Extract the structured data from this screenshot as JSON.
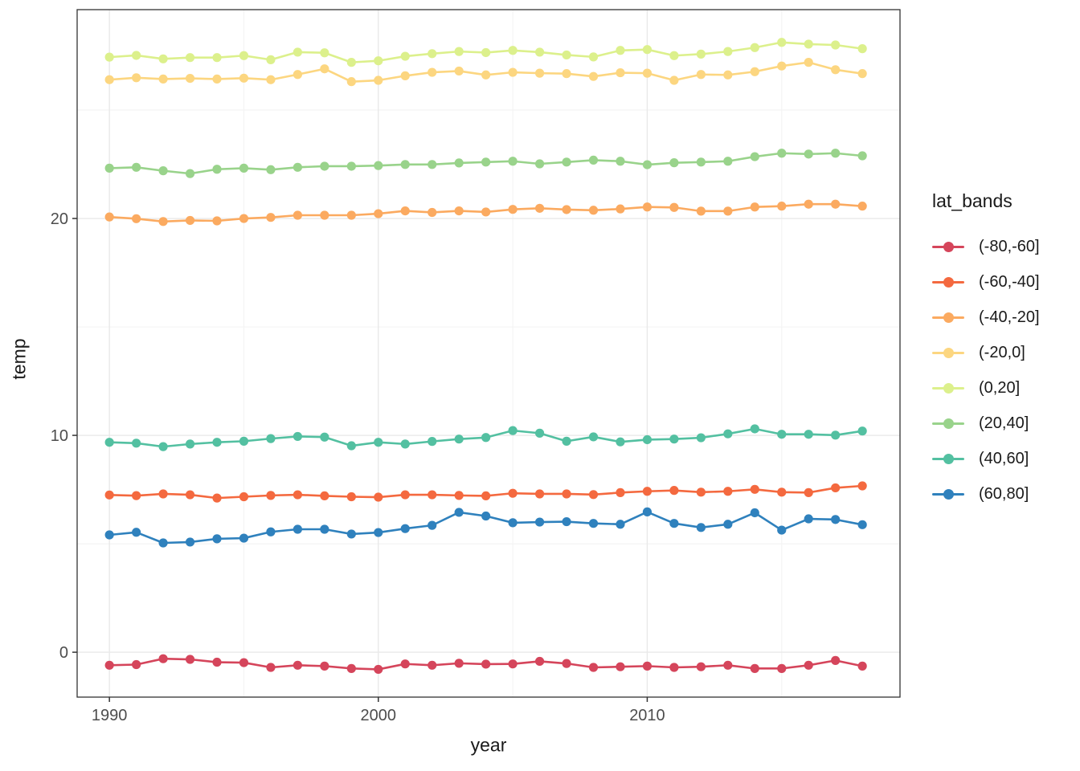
{
  "axes": {
    "x_label": "year",
    "y_label": "temp"
  },
  "legend": {
    "title": "lat_bands"
  },
  "chart_data": {
    "type": "line",
    "title": "",
    "xlabel": "year",
    "ylabel": "temp",
    "legend_title": "lat_bands",
    "legend_position": "right",
    "grid": true,
    "xlim": [
      1988.8,
      2019.4
    ],
    "ylim": [
      -2.07,
      29.63
    ],
    "x_ticks": [
      1990,
      2000,
      2010
    ],
    "x_minor_ticks": [
      1995,
      2005,
      2015
    ],
    "y_ticks": [
      0,
      10,
      20
    ],
    "y_minor_ticks": [
      5,
      15,
      25
    ],
    "x": [
      1990,
      1991,
      1992,
      1993,
      1994,
      1995,
      1996,
      1997,
      1998,
      1999,
      2000,
      2001,
      2002,
      2003,
      2004,
      2005,
      2006,
      2007,
      2008,
      2009,
      2010,
      2011,
      2012,
      2013,
      2014,
      2015,
      2016,
      2017,
      2018
    ],
    "series": [
      {
        "name": "(-80,-60]",
        "color": "#d5455b",
        "values": [
          -0.6,
          -0.57,
          -0.3,
          -0.33,
          -0.46,
          -0.48,
          -0.7,
          -0.6,
          -0.64,
          -0.75,
          -0.79,
          -0.54,
          -0.6,
          -0.51,
          -0.55,
          -0.54,
          -0.42,
          -0.52,
          -0.7,
          -0.67,
          -0.64,
          -0.7,
          -0.67,
          -0.6,
          -0.75,
          -0.75,
          -0.6,
          -0.38,
          -0.64
        ]
      },
      {
        "name": "(-60,-40]",
        "color": "#f4693f",
        "values": [
          7.25,
          7.22,
          7.3,
          7.26,
          7.11,
          7.17,
          7.23,
          7.26,
          7.21,
          7.17,
          7.15,
          7.26,
          7.26,
          7.23,
          7.21,
          7.33,
          7.3,
          7.3,
          7.27,
          7.36,
          7.42,
          7.46,
          7.38,
          7.42,
          7.51,
          7.38,
          7.36,
          7.58,
          7.67
        ]
      },
      {
        "name": "(-40,-20]",
        "color": "#fbaa60",
        "values": [
          20.07,
          19.99,
          19.86,
          19.91,
          19.89,
          20.0,
          20.05,
          20.15,
          20.15,
          20.15,
          20.22,
          20.35,
          20.28,
          20.35,
          20.3,
          20.42,
          20.47,
          20.41,
          20.38,
          20.44,
          20.53,
          20.51,
          20.34,
          20.34,
          20.53,
          20.57,
          20.66,
          20.66,
          20.57
        ]
      },
      {
        "name": "(-20,0]",
        "color": "#fcd680",
        "values": [
          26.4,
          26.49,
          26.43,
          26.46,
          26.43,
          26.47,
          26.4,
          26.64,
          26.9,
          26.31,
          26.37,
          26.58,
          26.74,
          26.8,
          26.62,
          26.74,
          26.7,
          26.68,
          26.55,
          26.72,
          26.7,
          26.37,
          26.64,
          26.62,
          26.77,
          27.03,
          27.2,
          26.86,
          26.68
        ]
      },
      {
        "name": "(0,20]",
        "color": "#dcf08c",
        "values": [
          27.44,
          27.52,
          27.36,
          27.42,
          27.42,
          27.51,
          27.32,
          27.67,
          27.64,
          27.2,
          27.27,
          27.48,
          27.6,
          27.7,
          27.65,
          27.75,
          27.67,
          27.54,
          27.45,
          27.75,
          27.79,
          27.51,
          27.58,
          27.7,
          27.88,
          28.12,
          28.04,
          28.0,
          27.83
        ]
      },
      {
        "name": "(20,40]",
        "color": "#99d38b",
        "values": [
          22.32,
          22.36,
          22.2,
          22.07,
          22.27,
          22.32,
          22.25,
          22.36,
          22.41,
          22.41,
          22.44,
          22.49,
          22.49,
          22.56,
          22.6,
          22.64,
          22.52,
          22.6,
          22.69,
          22.64,
          22.48,
          22.57,
          22.6,
          22.64,
          22.85,
          23.01,
          22.97,
          23.01,
          22.89
        ]
      },
      {
        "name": "(40,60]",
        "color": "#53c0a1",
        "values": [
          9.68,
          9.64,
          9.48,
          9.6,
          9.68,
          9.73,
          9.85,
          9.95,
          9.92,
          9.52,
          9.68,
          9.6,
          9.72,
          9.83,
          9.9,
          10.22,
          10.1,
          9.73,
          9.93,
          9.7,
          9.8,
          9.83,
          9.89,
          10.07,
          10.3,
          10.05,
          10.05,
          10.01,
          10.2
        ]
      },
      {
        "name": "(60,80]",
        "color": "#2f81bd",
        "values": [
          5.41,
          5.53,
          5.04,
          5.08,
          5.23,
          5.26,
          5.55,
          5.67,
          5.67,
          5.45,
          5.52,
          5.7,
          5.85,
          6.45,
          6.28,
          5.97,
          6.0,
          6.02,
          5.94,
          5.9,
          6.47,
          5.94,
          5.75,
          5.9,
          6.43,
          5.63,
          6.15,
          6.12,
          5.88
        ]
      }
    ],
    "theme": {
      "panel_background": "#ffffff",
      "panel_border": "#333333",
      "grid_major": "#e9e9e9",
      "grid_minor": "#f4f4f4",
      "tick_color": "#333333",
      "tick_label_color": "#4d4d4d"
    }
  }
}
